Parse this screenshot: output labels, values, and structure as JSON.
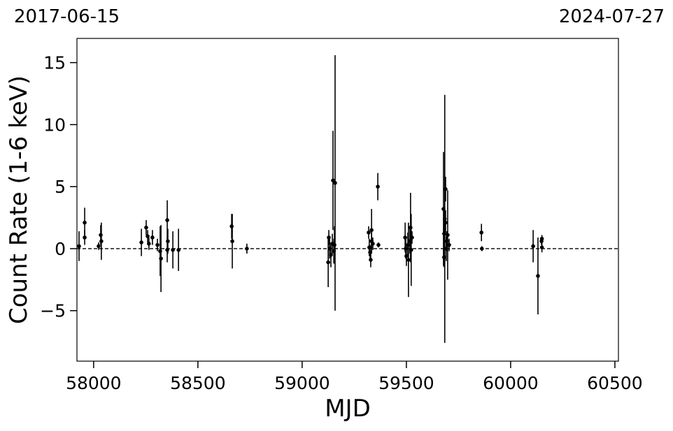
{
  "chart_data": {
    "type": "errorbar",
    "annotations": [
      "2017-06-15",
      "2024-07-27"
    ],
    "xlabel": "MJD",
    "ylabel": "Count Rate (1-6 keV)",
    "xlim": [
      57920,
      60517
    ],
    "ylim": [
      -9.07,
      16.95
    ],
    "xticks": [
      58000,
      58500,
      59000,
      59500,
      60000,
      60500
    ],
    "yticks": [
      {
        "value": -5,
        "label": "−5"
      },
      0,
      5,
      10,
      15
    ],
    "hline": 0,
    "color": "#000000",
    "x": [
      57930,
      57957,
      57957,
      58024,
      58034,
      58037,
      58229,
      58252,
      58259,
      58265,
      58282,
      58306,
      58319,
      58323,
      58353,
      58356,
      58353,
      58380,
      58407,
      58662,
      58665,
      58735,
      59125,
      59128,
      59132,
      59138,
      59145,
      59148,
      59158,
      59155,
      59152,
      59319,
      59322,
      59326,
      59329,
      59333,
      59333,
      59339,
      59363,
      59366,
      59494,
      59497,
      59500,
      59507,
      59510,
      59517,
      59520,
      59523,
      59527,
      59678,
      59681,
      59684,
      59688,
      59688,
      59681,
      59691,
      59694,
      59698,
      59705,
      59860,
      59862,
      60108,
      60131,
      60148,
      60150,
      60150
    ],
    "values": [
      0.2,
      2.1,
      0.9,
      0.2,
      1.1,
      0.6,
      0.5,
      1.7,
      1.0,
      0.4,
      0.9,
      0.3,
      -0.2,
      -0.8,
      2.3,
      0.6,
      -0.1,
      -0.1,
      -0.1,
      1.8,
      0.6,
      0.0,
      -1.1,
      0.9,
      0.0,
      -0.5,
      0.4,
      5.5,
      5.3,
      0.3,
      -0.2,
      1.3,
      0.1,
      -0.3,
      -0.9,
      1.5,
      0.6,
      0.4,
      5.0,
      0.3,
      0.9,
      0.0,
      -0.6,
      0.3,
      -0.9,
      0.6,
      1.7,
      -0.1,
      0.9,
      3.2,
      1.2,
      2.4,
      2.1,
      4.8,
      -0.7,
      0.0,
      0.6,
      1.1,
      0.3,
      1.3,
      0.0,
      0.2,
      -2.2,
      0.6,
      0.1,
      0.8
    ],
    "errors": [
      1.2,
      1.2,
      0.6,
      0.3,
      0.8,
      1.5,
      1.1,
      0.6,
      0.5,
      0.5,
      0.6,
      0.5,
      2.0,
      2.7,
      1.6,
      1.0,
      1.0,
      1.5,
      1.7,
      1.0,
      2.2,
      0.4,
      2.0,
      0.6,
      0.8,
      1.0,
      0.8,
      4.0,
      10.3,
      1.5,
      1.0,
      0.5,
      0.7,
      0.6,
      0.6,
      1.7,
      1.0,
      0.5,
      1.1,
      0.2,
      1.2,
      0.8,
      0.8,
      1.0,
      3.0,
      1.0,
      2.8,
      2.9,
      0.5,
      4.6,
      2.0,
      10.0,
      1.0,
      1.0,
      0.8,
      1.0,
      0.8,
      3.6,
      0.5,
      0.7,
      0.2,
      1.3,
      3.1,
      0.3,
      0.4,
      0.3
    ]
  }
}
